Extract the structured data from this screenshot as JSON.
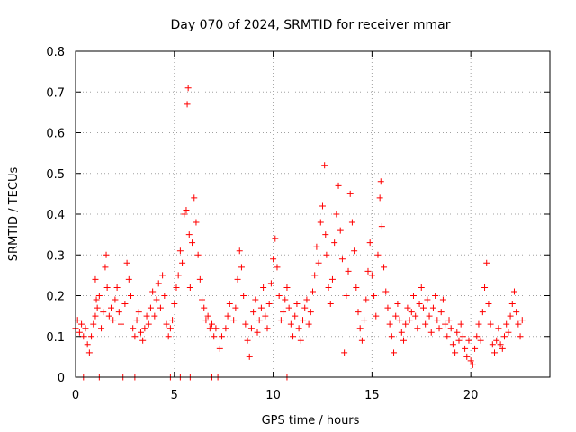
{
  "chart_data": {
    "type": "scatter",
    "title": "Day 070 of 2024, SRMTID for receiver mmar",
    "xlabel": "GPS time / hours",
    "ylabel": "SRMTID / TECUs",
    "xlim": [
      0,
      24
    ],
    "ylim": [
      0,
      0.8
    ],
    "xticks": [
      0,
      5,
      10,
      15,
      20
    ],
    "xtick_labels": [
      "0",
      "5",
      "10",
      "15",
      "20"
    ],
    "yticks": [
      0,
      0.1,
      0.2,
      0.3,
      0.4,
      0.5,
      0.6,
      0.7,
      0.8
    ],
    "ytick_labels": [
      "0",
      "0.1",
      "0.2",
      "0.3",
      "0.4",
      "0.5",
      "0.6",
      "0.7",
      "0.8"
    ],
    "grid": true,
    "marker": "+",
    "color": "#ff0000",
    "series": [
      {
        "name": "SRMTID",
        "points": [
          [
            0.0,
            0.12
          ],
          [
            0.1,
            0.14
          ],
          [
            0.2,
            0.11
          ],
          [
            0.3,
            0.13
          ],
          [
            0.4,
            0.1
          ],
          [
            0.5,
            0.12
          ],
          [
            0.6,
            0.08
          ],
          [
            0.7,
            0.06
          ],
          [
            0.8,
            0.1
          ],
          [
            0.9,
            0.13
          ],
          [
            1.0,
            0.15
          ],
          [
            1.0,
            0.24
          ],
          [
            1.05,
            0.19
          ],
          [
            1.1,
            0.17
          ],
          [
            1.2,
            0.2
          ],
          [
            1.3,
            0.12
          ],
          [
            1.4,
            0.16
          ],
          [
            1.5,
            0.27
          ],
          [
            1.55,
            0.3
          ],
          [
            1.6,
            0.22
          ],
          [
            1.7,
            0.15
          ],
          [
            1.8,
            0.17
          ],
          [
            1.9,
            0.14
          ],
          [
            2.0,
            0.19
          ],
          [
            2.1,
            0.22
          ],
          [
            2.2,
            0.16
          ],
          [
            2.3,
            0.13
          ],
          [
            2.5,
            0.18
          ],
          [
            2.6,
            0.28
          ],
          [
            2.7,
            0.24
          ],
          [
            2.8,
            0.2
          ],
          [
            2.9,
            0.12
          ],
          [
            3.0,
            0.1
          ],
          [
            3.1,
            0.14
          ],
          [
            3.2,
            0.16
          ],
          [
            3.3,
            0.11
          ],
          [
            3.4,
            0.09
          ],
          [
            3.5,
            0.12
          ],
          [
            3.6,
            0.15
          ],
          [
            3.7,
            0.13
          ],
          [
            3.8,
            0.17
          ],
          [
            3.9,
            0.21
          ],
          [
            4.0,
            0.15
          ],
          [
            4.1,
            0.19
          ],
          [
            4.2,
            0.23
          ],
          [
            4.3,
            0.17
          ],
          [
            4.4,
            0.25
          ],
          [
            4.5,
            0.2
          ],
          [
            4.6,
            0.13
          ],
          [
            4.7,
            0.1
          ],
          [
            4.8,
            0.12
          ],
          [
            4.9,
            0.14
          ],
          [
            5.0,
            0.18
          ],
          [
            5.1,
            0.22
          ],
          [
            5.2,
            0.25
          ],
          [
            5.3,
            0.31
          ],
          [
            5.4,
            0.28
          ],
          [
            5.5,
            0.4
          ],
          [
            5.6,
            0.41
          ],
          [
            5.65,
            0.67
          ],
          [
            5.7,
            0.71
          ],
          [
            5.75,
            0.35
          ],
          [
            5.8,
            0.22
          ],
          [
            5.9,
            0.33
          ],
          [
            6.0,
            0.44
          ],
          [
            6.1,
            0.38
          ],
          [
            6.2,
            0.3
          ],
          [
            6.3,
            0.24
          ],
          [
            6.4,
            0.19
          ],
          [
            6.5,
            0.17
          ],
          [
            6.6,
            0.14
          ],
          [
            6.7,
            0.15
          ],
          [
            6.8,
            0.12
          ],
          [
            6.9,
            0.13
          ],
          [
            7.0,
            0.1
          ],
          [
            7.1,
            0.12
          ],
          [
            7.3,
            0.07
          ],
          [
            7.4,
            0.1
          ],
          [
            7.6,
            0.12
          ],
          [
            7.7,
            0.15
          ],
          [
            7.8,
            0.18
          ],
          [
            8.0,
            0.14
          ],
          [
            8.1,
            0.17
          ],
          [
            8.2,
            0.24
          ],
          [
            8.3,
            0.31
          ],
          [
            8.4,
            0.27
          ],
          [
            8.5,
            0.2
          ],
          [
            8.6,
            0.13
          ],
          [
            8.7,
            0.09
          ],
          [
            8.8,
            0.05
          ],
          [
            8.9,
            0.12
          ],
          [
            9.0,
            0.16
          ],
          [
            9.1,
            0.19
          ],
          [
            9.2,
            0.11
          ],
          [
            9.3,
            0.14
          ],
          [
            9.4,
            0.17
          ],
          [
            9.5,
            0.22
          ],
          [
            9.6,
            0.15
          ],
          [
            9.7,
            0.12
          ],
          [
            9.8,
            0.18
          ],
          [
            9.9,
            0.23
          ],
          [
            10.0,
            0.29
          ],
          [
            10.1,
            0.34
          ],
          [
            10.2,
            0.27
          ],
          [
            10.3,
            0.2
          ],
          [
            10.4,
            0.14
          ],
          [
            10.5,
            0.16
          ],
          [
            10.6,
            0.19
          ],
          [
            10.7,
            0.22
          ],
          [
            10.8,
            0.17
          ],
          [
            10.9,
            0.13
          ],
          [
            11.0,
            0.1
          ],
          [
            11.1,
            0.15
          ],
          [
            11.2,
            0.18
          ],
          [
            11.3,
            0.12
          ],
          [
            11.4,
            0.09
          ],
          [
            11.5,
            0.14
          ],
          [
            11.6,
            0.17
          ],
          [
            11.7,
            0.19
          ],
          [
            11.8,
            0.13
          ],
          [
            11.9,
            0.16
          ],
          [
            12.0,
            0.21
          ],
          [
            12.1,
            0.25
          ],
          [
            12.2,
            0.32
          ],
          [
            12.3,
            0.28
          ],
          [
            12.4,
            0.38
          ],
          [
            12.5,
            0.42
          ],
          [
            12.6,
            0.52
          ],
          [
            12.65,
            0.35
          ],
          [
            12.7,
            0.3
          ],
          [
            12.8,
            0.22
          ],
          [
            12.9,
            0.18
          ],
          [
            13.0,
            0.24
          ],
          [
            13.1,
            0.33
          ],
          [
            13.2,
            0.4
          ],
          [
            13.3,
            0.47
          ],
          [
            13.4,
            0.36
          ],
          [
            13.5,
            0.29
          ],
          [
            13.6,
            0.06
          ],
          [
            13.7,
            0.2
          ],
          [
            13.8,
            0.26
          ],
          [
            13.9,
            0.45
          ],
          [
            14.0,
            0.38
          ],
          [
            14.1,
            0.31
          ],
          [
            14.2,
            0.22
          ],
          [
            14.3,
            0.16
          ],
          [
            14.4,
            0.12
          ],
          [
            14.5,
            0.09
          ],
          [
            14.6,
            0.14
          ],
          [
            14.7,
            0.19
          ],
          [
            14.8,
            0.26
          ],
          [
            14.9,
            0.33
          ],
          [
            15.0,
            0.25
          ],
          [
            15.1,
            0.2
          ],
          [
            15.2,
            0.15
          ],
          [
            15.3,
            0.3
          ],
          [
            15.4,
            0.44
          ],
          [
            15.45,
            0.48
          ],
          [
            15.5,
            0.37
          ],
          [
            15.6,
            0.27
          ],
          [
            15.7,
            0.21
          ],
          [
            15.8,
            0.17
          ],
          [
            15.9,
            0.13
          ],
          [
            16.0,
            0.1
          ],
          [
            16.1,
            0.06
          ],
          [
            16.2,
            0.15
          ],
          [
            16.3,
            0.18
          ],
          [
            16.4,
            0.14
          ],
          [
            16.5,
            0.11
          ],
          [
            16.6,
            0.09
          ],
          [
            16.7,
            0.13
          ],
          [
            16.8,
            0.17
          ],
          [
            16.9,
            0.14
          ],
          [
            17.0,
            0.16
          ],
          [
            17.1,
            0.2
          ],
          [
            17.2,
            0.15
          ],
          [
            17.3,
            0.12
          ],
          [
            17.4,
            0.18
          ],
          [
            17.5,
            0.22
          ],
          [
            17.6,
            0.17
          ],
          [
            17.7,
            0.13
          ],
          [
            17.8,
            0.19
          ],
          [
            17.9,
            0.15
          ],
          [
            18.0,
            0.11
          ],
          [
            18.1,
            0.17
          ],
          [
            18.2,
            0.2
          ],
          [
            18.3,
            0.14
          ],
          [
            18.4,
            0.12
          ],
          [
            18.5,
            0.16
          ],
          [
            18.6,
            0.19
          ],
          [
            18.7,
            0.13
          ],
          [
            18.8,
            0.1
          ],
          [
            18.9,
            0.14
          ],
          [
            19.0,
            0.12
          ],
          [
            19.1,
            0.08
          ],
          [
            19.2,
            0.06
          ],
          [
            19.3,
            0.11
          ],
          [
            19.4,
            0.09
          ],
          [
            19.5,
            0.13
          ],
          [
            19.6,
            0.1
          ],
          [
            19.7,
            0.07
          ],
          [
            19.8,
            0.05
          ],
          [
            19.9,
            0.09
          ],
          [
            20.0,
            0.04
          ],
          [
            20.1,
            0.03
          ],
          [
            20.2,
            0.07
          ],
          [
            20.3,
            0.1
          ],
          [
            20.4,
            0.13
          ],
          [
            20.5,
            0.09
          ],
          [
            20.6,
            0.16
          ],
          [
            20.7,
            0.22
          ],
          [
            20.8,
            0.28
          ],
          [
            20.9,
            0.18
          ],
          [
            21.0,
            0.13
          ],
          [
            21.1,
            0.08
          ],
          [
            21.2,
            0.06
          ],
          [
            21.3,
            0.09
          ],
          [
            21.4,
            0.12
          ],
          [
            21.5,
            0.08
          ],
          [
            21.6,
            0.07
          ],
          [
            21.7,
            0.1
          ],
          [
            21.8,
            0.13
          ],
          [
            21.9,
            0.11
          ],
          [
            22.0,
            0.15
          ],
          [
            22.1,
            0.18
          ],
          [
            22.2,
            0.21
          ],
          [
            22.3,
            0.16
          ],
          [
            22.4,
            0.13
          ],
          [
            22.5,
            0.1
          ],
          [
            22.6,
            0.14
          ],
          [
            0.4,
            0.0
          ],
          [
            1.2,
            0.0
          ],
          [
            2.4,
            0.0
          ],
          [
            3.0,
            0.0
          ],
          [
            4.8,
            0.0
          ],
          [
            5.3,
            0.0
          ],
          [
            5.8,
            0.0
          ],
          [
            6.9,
            0.0
          ],
          [
            7.2,
            0.0
          ],
          [
            10.7,
            0.0
          ]
        ]
      }
    ]
  }
}
